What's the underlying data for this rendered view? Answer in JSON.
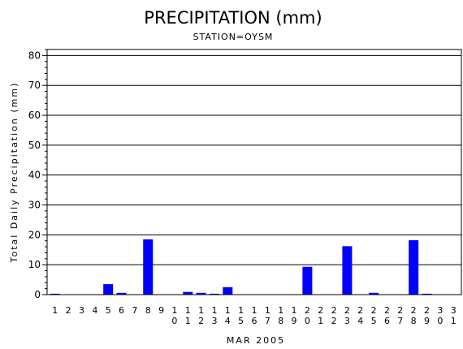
{
  "chart_data": {
    "type": "bar",
    "title": "PRECIPITATION (mm)",
    "subtitle": "STATION=OYSM",
    "xlabel": "MAR 2005",
    "ylabel": "Total Daily Precipitation (mm)",
    "ylim": [
      0,
      82
    ],
    "yticks": [
      "0",
      "10",
      "20",
      "30",
      "40",
      "50",
      "60",
      "70",
      "80"
    ],
    "grid": true,
    "bar_color": "#0000ff",
    "categories": [
      "1",
      "2",
      "3",
      "4",
      "5",
      "6",
      "7",
      "8",
      "9",
      "10",
      "11",
      "12",
      "13",
      "14",
      "15",
      "16",
      "17",
      "18",
      "19",
      "20",
      "21",
      "22",
      "23",
      "24",
      "25",
      "26",
      "27",
      "28",
      "29",
      "30",
      "31"
    ],
    "values": [
      0.3,
      0,
      0,
      0,
      3.5,
      0.6,
      0,
      18.5,
      0,
      0,
      0.9,
      0.6,
      0.3,
      2.5,
      0,
      0,
      0,
      0,
      0,
      9.3,
      0,
      0,
      16.2,
      0,
      0.6,
      0,
      0,
      18.2,
      0.3,
      0,
      0
    ]
  }
}
